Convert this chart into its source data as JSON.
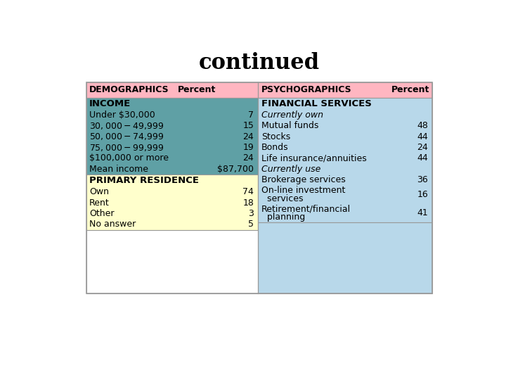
{
  "title": "continued",
  "title_fontsize": 22,
  "title_fontweight": "bold",
  "left_header": "DEMOGRAPHICS",
  "left_header2": "Percent",
  "right_header": "PSYCHOGRAPHICS",
  "right_header2": "Percent",
  "header_bg": "#ffb6c1",
  "left_section1_bg_top": "#4a9a9a",
  "left_section1_bg": "#6aafaf",
  "left_section2_bg": "#ffffcc",
  "right_section_bg": "#b8d8ea",
  "border_color": "#999999",
  "left_section1_rows": [
    {
      "label": "INCOME",
      "value": "",
      "bold": true
    },
    {
      "label": "Under $30,000",
      "value": "7",
      "bold": false
    },
    {
      "label": "$30,000 - $49,999",
      "value": "15",
      "bold": false
    },
    {
      "label": "$50,000 - $74,999",
      "value": "24",
      "bold": false
    },
    {
      "label": "$75,000 - $99,999",
      "value": "19",
      "bold": false
    },
    {
      "label": "$100,000 or more",
      "value": "24",
      "bold": false
    },
    {
      "label": "Mean income",
      "value": "$87,700",
      "bold": false
    }
  ],
  "left_section2_rows": [
    {
      "label": "PRIMARY RESIDENCE",
      "value": "",
      "bold": true
    },
    {
      "label": "Own",
      "value": "74",
      "bold": false
    },
    {
      "label": "Rent",
      "value": "18",
      "bold": false
    },
    {
      "label": "Other",
      "value": "3",
      "bold": false
    },
    {
      "label": "No answer",
      "value": "5",
      "bold": false
    }
  ],
  "right_rows": [
    {
      "label": "FINANCIAL SERVICES",
      "value": "",
      "bold": true,
      "italic": false,
      "multiline": false
    },
    {
      "label": "Currently own",
      "value": "",
      "bold": false,
      "italic": true,
      "multiline": false
    },
    {
      "label": "Mutual funds",
      "value": "48",
      "bold": false,
      "italic": false,
      "multiline": false
    },
    {
      "label": "Stocks",
      "value": "44",
      "bold": false,
      "italic": false,
      "multiline": false
    },
    {
      "label": "Bonds",
      "value": "24",
      "bold": false,
      "italic": false,
      "multiline": false
    },
    {
      "label": "Life insurance/annuities",
      "value": "44",
      "bold": false,
      "italic": false,
      "multiline": false
    },
    {
      "label": "Currently use",
      "value": "",
      "bold": false,
      "italic": true,
      "multiline": false
    },
    {
      "label": "Brokerage services",
      "value": "36",
      "bold": false,
      "italic": false,
      "multiline": false
    },
    {
      "label": "On-line investment\n  services",
      "value": "16",
      "bold": false,
      "italic": false,
      "multiline": true
    },
    {
      "label": "Retirement/financial\n  planning",
      "value": "41",
      "bold": false,
      "italic": false,
      "multiline": true
    }
  ]
}
